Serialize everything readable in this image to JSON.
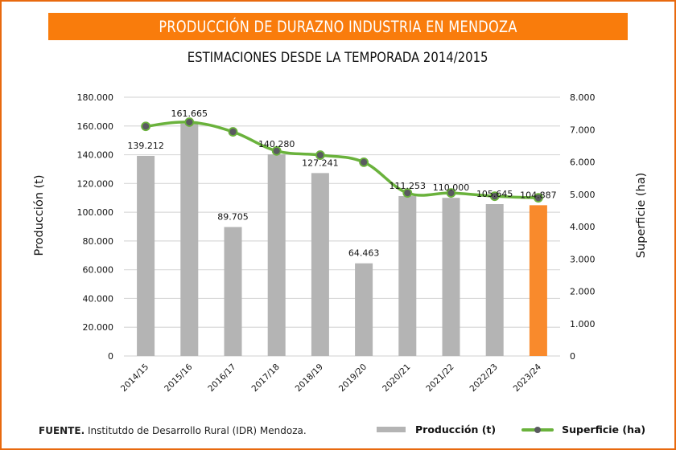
{
  "title": "PRODUCCIÓN DE DURAZNO INDUSTRIA EN MENDOZA",
  "subtitle": "ESTIMACIONES DESDE LA TEMPORADA 2014/2015",
  "footer": {
    "source_label": "FUENTE.",
    "source_text": "Institutdo de Desarrollo Rural (IDR) Mendoza."
  },
  "colors": {
    "frame": "#E8690E",
    "banner": "#F97C0C",
    "bar": "#B4B4B4",
    "bar_highlight": "#F98A2C",
    "line": "#6AB23C",
    "marker": "#5A5A60",
    "grid": "#D9D9D9"
  },
  "chart_data": {
    "type": "bar",
    "title": "PRODUCCIÓN DE DURAZNO INDUSTRIA EN MENDOZA",
    "subtitle": "ESTIMACIONES DESDE LA TEMPORADA 2014/2015",
    "categories": [
      "2014/15",
      "2015/16",
      "2016/17",
      "2017/18",
      "2018/19",
      "2019/20",
      "2020/21",
      "2021/22",
      "2022/23",
      "2023/24"
    ],
    "series": [
      {
        "name": "Producción (t)",
        "type": "bar",
        "axis": "left",
        "values": [
          139212,
          161665,
          89705,
          140280,
          127241,
          64463,
          111253,
          110000,
          105645,
          104887
        ],
        "data_labels": [
          "139.212",
          "161.665",
          "89.705",
          "140.280",
          "127.241",
          "64.463",
          "111.253",
          "110.000",
          "105.645",
          "104.887"
        ],
        "highlight_index": 9
      },
      {
        "name": "Superficie (ha)",
        "type": "line",
        "axis": "right",
        "smooth": true,
        "values": [
          7100,
          7230,
          6930,
          6340,
          6210,
          5990,
          5040,
          5040,
          4940,
          4890
        ]
      }
    ],
    "xlabel": "",
    "ylabel": "Producción (t)",
    "ylabel_right": "Superficie (ha)",
    "ylim": [
      0,
      180000
    ],
    "ylim_right": [
      0,
      8000
    ],
    "yticks": [
      "0",
      "20.000",
      "40.000",
      "60.000",
      "80.000",
      "100.000",
      "120.000",
      "140.000",
      "160.000",
      "180.000"
    ],
    "yticks_right": [
      "0",
      "1.000",
      "2.000",
      "3.000",
      "4.000",
      "5.000",
      "6.000",
      "7.000",
      "8.000"
    ],
    "grid": true,
    "legend": {
      "position": "bottom-right",
      "entries": [
        "Producción (t)",
        "Superficie (ha)"
      ]
    }
  }
}
